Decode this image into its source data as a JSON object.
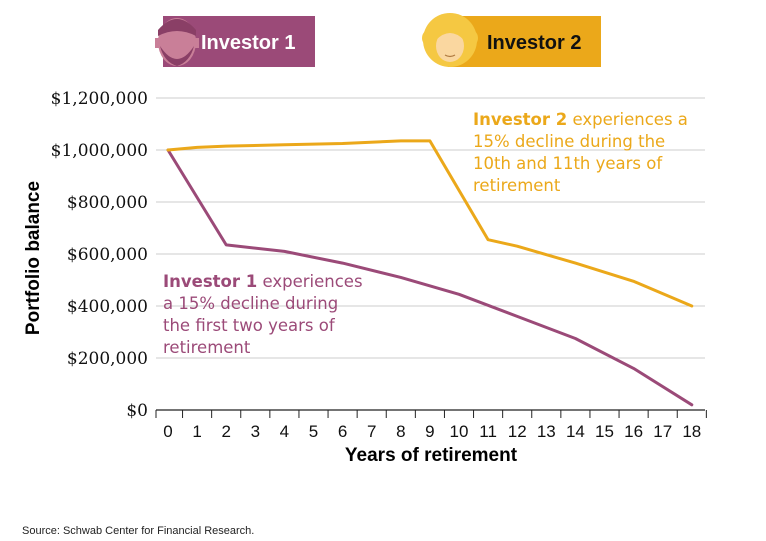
{
  "colors": {
    "investor1": "#9B4A78",
    "investor2": "#EBA81A",
    "grid": "#cccccc",
    "axis": "#222222"
  },
  "legend": {
    "investor1": {
      "label": "Investor 1",
      "icon": "man-avatar-icon"
    },
    "investor2": {
      "label": "Investor 2",
      "icon": "woman-avatar-icon"
    }
  },
  "annotations": {
    "investor2": {
      "name": "Investor 2",
      "lines": [
        " experiences a",
        "15% decline during the",
        "10th and 11th years of",
        "retirement"
      ]
    },
    "investor1": {
      "name": "Investor 1",
      "lines": [
        " experiences",
        "a 15% decline during",
        "the first two years of",
        "retirement"
      ]
    }
  },
  "source": "Source: Schwab Center for Financial Research.",
  "chart_data": {
    "type": "line",
    "title": "",
    "xlabel": "Years of retirement",
    "ylabel": "Portfolio balance",
    "x": [
      0,
      1,
      2,
      3,
      4,
      5,
      6,
      7,
      8,
      9,
      10,
      11,
      12,
      13,
      14,
      15,
      16,
      17,
      18
    ],
    "ylim": [
      0,
      1200000
    ],
    "yticks": [
      0,
      200000,
      400000,
      600000,
      800000,
      1000000,
      1200000
    ],
    "ytick_labels": [
      "$0",
      "$200,000",
      "$400,000",
      "$600,000",
      "$800,000",
      "$1,000,000",
      "$1,200,000"
    ],
    "grid": true,
    "series": [
      {
        "name": "Investor 1",
        "color": "#9B4A78",
        "points": [
          [
            0,
            1000000
          ],
          [
            2,
            635000
          ],
          [
            4,
            610000
          ],
          [
            6,
            565000
          ],
          [
            8,
            510000
          ],
          [
            10,
            445000
          ],
          [
            12,
            360000
          ],
          [
            14,
            275000
          ],
          [
            16,
            160000
          ],
          [
            18,
            20000
          ]
        ]
      },
      {
        "name": "Investor 2",
        "color": "#EBA81A",
        "points": [
          [
            0,
            1000000
          ],
          [
            1,
            1010000
          ],
          [
            2,
            1015000
          ],
          [
            4,
            1020000
          ],
          [
            6,
            1025000
          ],
          [
            8,
            1035000
          ],
          [
            9,
            1035000
          ],
          [
            11,
            655000
          ],
          [
            12,
            630000
          ],
          [
            14,
            565000
          ],
          [
            16,
            495000
          ],
          [
            18,
            400000
          ]
        ]
      }
    ]
  }
}
